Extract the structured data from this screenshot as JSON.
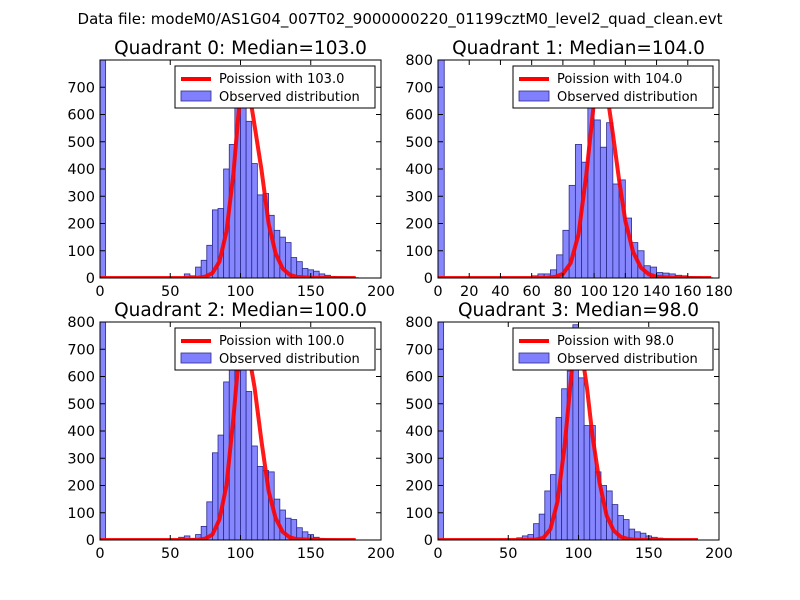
{
  "figure": {
    "suptitle": "Data file: modeM0/AS1G04_007T02_9000000220_01199cztM0_level2_quad_clean.evt",
    "colors": {
      "bar_fill": "#8080ff",
      "bar_edge": "#2b2b8c",
      "poisson_line": "#ff0000",
      "axes": "#000000",
      "legend_edge": "#000000"
    }
  },
  "chart_data": [
    {
      "type": "bar+line",
      "title": "Quadrant 0: Median=103.0",
      "xlabel": "",
      "ylabel": "",
      "xlim": [
        0,
        200
      ],
      "ylim": [
        0,
        800
      ],
      "xticks": [
        0,
        50,
        100,
        150,
        200
      ],
      "yticks": [
        0,
        100,
        200,
        300,
        400,
        500,
        600,
        700
      ],
      "legend_loc": "upper right",
      "series": [
        {
          "name": "Poission with 103.0",
          "kind": "line",
          "x": [
            0,
            50,
            60,
            70,
            75,
            80,
            85,
            90,
            95,
            100,
            103,
            106,
            110,
            115,
            120,
            125,
            130,
            135,
            140,
            150,
            160,
            182
          ],
          "y": [
            0,
            0,
            0,
            1,
            5,
            18,
            60,
            170,
            385,
            690,
            740,
            690,
            560,
            395,
            200,
            90,
            35,
            12,
            4,
            1,
            0,
            0
          ]
        },
        {
          "name": "Observed distribution",
          "kind": "bar",
          "bin_width": 4,
          "x": [
            0,
            60,
            64,
            68,
            72,
            76,
            80,
            84,
            88,
            92,
            96,
            100,
            104,
            108,
            112,
            116,
            120,
            124,
            128,
            132,
            136,
            140,
            144,
            148,
            152,
            156,
            160,
            164,
            168,
            172,
            176,
            180
          ],
          "values": [
            800,
            15,
            8,
            40,
            65,
            120,
            250,
            255,
            400,
            490,
            625,
            750,
            575,
            420,
            305,
            310,
            230,
            175,
            150,
            130,
            75,
            60,
            35,
            30,
            25,
            15,
            10,
            6,
            4,
            3,
            2,
            1
          ]
        }
      ]
    },
    {
      "type": "bar+line",
      "title": "Quadrant 1: Median=104.0",
      "xlabel": "",
      "ylabel": "",
      "xlim": [
        0,
        180
      ],
      "ylim": [
        0,
        800
      ],
      "xticks": [
        0,
        20,
        40,
        60,
        80,
        100,
        120,
        140,
        160,
        180
      ],
      "yticks": [
        0,
        100,
        200,
        300,
        400,
        500,
        600,
        700,
        800
      ],
      "legend_loc": "upper right",
      "series": [
        {
          "name": "Poission with 104.0",
          "kind": "line",
          "x": [
            0,
            50,
            60,
            70,
            75,
            80,
            85,
            90,
            95,
            100,
            104,
            108,
            112,
            116,
            120,
            125,
            130,
            135,
            140,
            150,
            160,
            175
          ],
          "y": [
            0,
            0,
            0,
            1,
            4,
            15,
            55,
            160,
            380,
            650,
            765,
            690,
            530,
            360,
            210,
            95,
            38,
            14,
            4,
            1,
            0,
            0
          ]
        },
        {
          "name": "Observed distribution",
          "kind": "bar",
          "bin_width": 4,
          "x": [
            0,
            60,
            64,
            68,
            72,
            76,
            80,
            84,
            88,
            92,
            96,
            100,
            104,
            108,
            112,
            116,
            120,
            124,
            128,
            132,
            136,
            140,
            144,
            148,
            152,
            156,
            160,
            164,
            168,
            172
          ],
          "values": [
            800,
            8,
            15,
            15,
            30,
            85,
            175,
            340,
            490,
            425,
            690,
            580,
            480,
            570,
            345,
            360,
            220,
            130,
            100,
            45,
            40,
            20,
            18,
            15,
            10,
            8,
            5,
            4,
            2,
            1
          ]
        }
      ]
    },
    {
      "type": "bar+line",
      "title": "Quadrant 2: Median=100.0",
      "xlabel": "",
      "ylabel": "",
      "xlim": [
        0,
        200
      ],
      "ylim": [
        0,
        800
      ],
      "xticks": [
        0,
        50,
        100,
        150,
        200
      ],
      "yticks": [
        0,
        100,
        200,
        300,
        400,
        500,
        600,
        700,
        800
      ],
      "legend_loc": "upper right",
      "series": [
        {
          "name": "Poission with 100.0",
          "kind": "line",
          "x": [
            0,
            50,
            60,
            70,
            75,
            80,
            85,
            90,
            95,
            100,
            105,
            110,
            115,
            120,
            125,
            130,
            135,
            140,
            150,
            160,
            182
          ],
          "y": [
            0,
            0,
            0,
            1,
            5,
            20,
            75,
            200,
            450,
            745,
            710,
            560,
            360,
            180,
            80,
            30,
            10,
            3,
            1,
            0,
            0
          ]
        },
        {
          "name": "Observed distribution",
          "kind": "bar",
          "bin_width": 4,
          "x": [
            0,
            56,
            60,
            64,
            68,
            72,
            76,
            80,
            84,
            88,
            92,
            96,
            100,
            104,
            108,
            112,
            116,
            120,
            124,
            128,
            132,
            136,
            140,
            144,
            148,
            152,
            156,
            160,
            164,
            168,
            172
          ],
          "values": [
            800,
            10,
            15,
            5,
            20,
            50,
            140,
            320,
            385,
            580,
            680,
            620,
            735,
            545,
            345,
            270,
            255,
            250,
            150,
            110,
            80,
            75,
            45,
            30,
            20,
            10,
            6,
            4,
            3,
            2,
            1
          ]
        }
      ]
    },
    {
      "type": "bar+line",
      "title": "Quadrant 3: Median=98.0",
      "xlabel": "",
      "ylabel": "",
      "xlim": [
        0,
        200
      ],
      "ylim": [
        0,
        800
      ],
      "xticks": [
        0,
        50,
        100,
        150,
        200
      ],
      "yticks": [
        0,
        100,
        200,
        300,
        400,
        500,
        600,
        700,
        800
      ],
      "legend_loc": "upper right",
      "series": [
        {
          "name": "Poission with 98.0",
          "kind": "line",
          "x": [
            0,
            50,
            60,
            70,
            75,
            80,
            85,
            90,
            95,
            98,
            102,
            106,
            110,
            115,
            120,
            125,
            130,
            135,
            140,
            150,
            160,
            185
          ],
          "y": [
            0,
            0,
            0,
            2,
            8,
            40,
            140,
            340,
            610,
            765,
            700,
            560,
            380,
            210,
            90,
            35,
            12,
            4,
            1,
            0,
            0,
            0
          ]
        },
        {
          "name": "Observed distribution",
          "kind": "bar",
          "bin_width": 4,
          "x": [
            0,
            56,
            60,
            64,
            68,
            72,
            76,
            80,
            84,
            88,
            92,
            96,
            100,
            104,
            108,
            112,
            116,
            120,
            124,
            128,
            132,
            136,
            140,
            144,
            148,
            152,
            156,
            160,
            164,
            168,
            172
          ],
          "values": [
            800,
            8,
            15,
            20,
            60,
            95,
            180,
            240,
            450,
            555,
            620,
            790,
            595,
            420,
            420,
            250,
            200,
            180,
            130,
            90,
            75,
            40,
            30,
            25,
            15,
            10,
            7,
            4,
            3,
            2,
            1
          ]
        }
      ]
    }
  ]
}
